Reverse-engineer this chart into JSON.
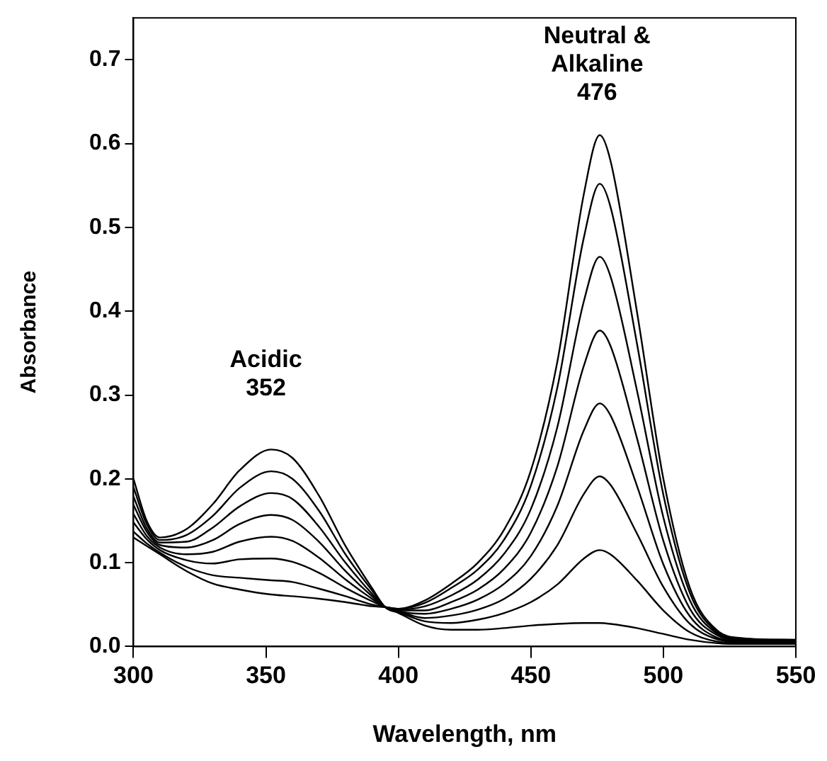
{
  "chart_data": {
    "type": "line",
    "xlabel": "Wavelength, nm",
    "ylabel": "Absorbance",
    "x": [
      300,
      305,
      310,
      320,
      330,
      340,
      352,
      360,
      370,
      380,
      390,
      395,
      400,
      410,
      420,
      430,
      440,
      450,
      460,
      470,
      476,
      480,
      490,
      500,
      510,
      520,
      530,
      550
    ],
    "xlim": [
      300,
      550
    ],
    "xticks": [
      300,
      350,
      400,
      450,
      500,
      550
    ],
    "ylim": [
      0,
      0.75
    ],
    "yticks": [
      {
        "value": 0,
        "label": "0.0"
      },
      0.1,
      0.2,
      0.3,
      0.4,
      0.5,
      0.6,
      0.7
    ],
    "grid": false,
    "legend": false,
    "marker": "none",
    "line_style": "solid",
    "annotations": [
      "Acidic\n352",
      "Neutral &\nAlkaline\n476"
    ],
    "series": [
      {
        "color": "#000000",
        "values": [
          0.2,
          0.15,
          0.13,
          0.14,
          0.17,
          0.21,
          0.235,
          0.225,
          0.18,
          0.12,
          0.07,
          0.047,
          0.04,
          0.025,
          0.02,
          0.02,
          0.022,
          0.025,
          0.027,
          0.028,
          0.028,
          0.027,
          0.022,
          0.015,
          0.008,
          0.004,
          0.003,
          0.003
        ]
      },
      {
        "color": "#000000",
        "values": [
          0.19,
          0.146,
          0.127,
          0.133,
          0.156,
          0.189,
          0.209,
          0.2,
          0.162,
          0.11,
          0.067,
          0.047,
          0.041,
          0.03,
          0.028,
          0.032,
          0.04,
          0.053,
          0.074,
          0.105,
          0.115,
          0.11,
          0.079,
          0.043,
          0.017,
          0.006,
          0.004,
          0.004
        ]
      },
      {
        "color": "#000000",
        "values": [
          0.179,
          0.141,
          0.124,
          0.125,
          0.142,
          0.167,
          0.183,
          0.176,
          0.143,
          0.1,
          0.063,
          0.047,
          0.042,
          0.034,
          0.037,
          0.044,
          0.057,
          0.081,
          0.121,
          0.182,
          0.203,
          0.193,
          0.135,
          0.071,
          0.027,
          0.009,
          0.005,
          0.005
        ]
      },
      {
        "color": "#000000",
        "values": [
          0.169,
          0.137,
          0.121,
          0.118,
          0.127,
          0.146,
          0.157,
          0.151,
          0.125,
          0.09,
          0.06,
          0.047,
          0.042,
          0.039,
          0.045,
          0.056,
          0.075,
          0.108,
          0.168,
          0.258,
          0.29,
          0.276,
          0.192,
          0.098,
          0.036,
          0.011,
          0.006,
          0.005
        ]
      },
      {
        "color": "#000000",
        "values": [
          0.158,
          0.132,
          0.118,
          0.11,
          0.113,
          0.125,
          0.131,
          0.126,
          0.106,
          0.08,
          0.057,
          0.047,
          0.043,
          0.043,
          0.053,
          0.068,
          0.093,
          0.136,
          0.215,
          0.335,
          0.377,
          0.359,
          0.249,
          0.126,
          0.045,
          0.014,
          0.007,
          0.006
        ]
      },
      {
        "color": "#000000",
        "values": [
          0.148,
          0.128,
          0.115,
          0.103,
          0.099,
          0.104,
          0.105,
          0.101,
          0.088,
          0.07,
          0.054,
          0.047,
          0.044,
          0.048,
          0.061,
          0.08,
          0.111,
          0.164,
          0.262,
          0.412,
          0.465,
          0.442,
          0.306,
          0.154,
          0.055,
          0.016,
          0.008,
          0.007
        ]
      },
      {
        "color": "#000000",
        "values": [
          0.137,
          0.123,
          0.112,
          0.095,
          0.085,
          0.082,
          0.079,
          0.077,
          0.069,
          0.06,
          0.05,
          0.047,
          0.045,
          0.052,
          0.07,
          0.092,
          0.128,
          0.192,
          0.309,
          0.488,
          0.552,
          0.525,
          0.362,
          0.181,
          0.064,
          0.018,
          0.009,
          0.008
        ]
      },
      {
        "color": "#000000",
        "values": [
          0.13,
          0.12,
          0.11,
          0.09,
          0.075,
          0.068,
          0.062,
          0.06,
          0.057,
          0.053,
          0.048,
          0.047,
          0.045,
          0.055,
          0.075,
          0.1,
          0.14,
          0.21,
          0.34,
          0.54,
          0.61,
          0.58,
          0.4,
          0.2,
          0.07,
          0.02,
          0.01,
          0.008
        ]
      }
    ]
  }
}
